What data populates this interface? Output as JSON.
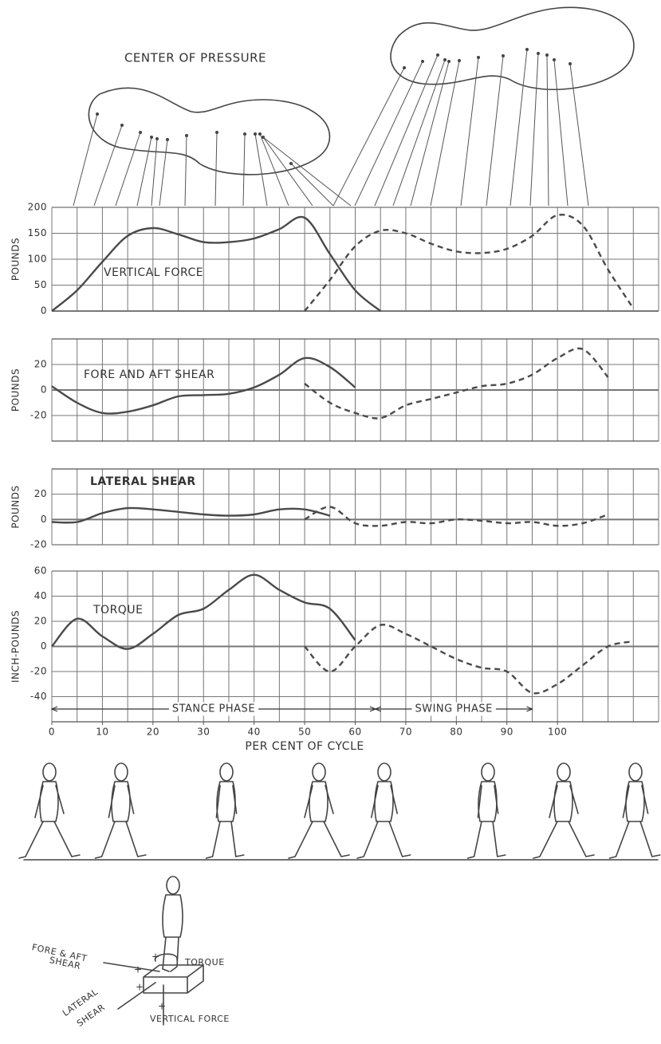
{
  "center_of_pressure": {
    "title": "CENTER OF PRESSURE"
  },
  "chart_data": [
    {
      "type": "line",
      "title": "VERTICAL FORCE",
      "ylabel": "POUNDS",
      "x": [
        0,
        5,
        10,
        15,
        20,
        25,
        30,
        35,
        40,
        45,
        50,
        55,
        60,
        65,
        70,
        75,
        80,
        85,
        90,
        95,
        100,
        105,
        110,
        115,
        120
      ],
      "xlim": [
        0,
        120
      ],
      "ylim": [
        0,
        200
      ],
      "yticks": [
        0,
        50,
        100,
        150,
        200
      ],
      "grid": true,
      "series": [
        {
          "color": "#4a4a4a",
          "line_style": "solid",
          "values": [
            0,
            40,
            95,
            145,
            160,
            148,
            133,
            133,
            140,
            158,
            180,
            110,
            40,
            0,
            null,
            null,
            null,
            null,
            null,
            null,
            null,
            null,
            null,
            null,
            null
          ]
        },
        {
          "color": "#4a4a4a",
          "line_style": "dashed",
          "values": [
            null,
            null,
            null,
            null,
            null,
            null,
            null,
            null,
            null,
            null,
            0,
            60,
            125,
            155,
            150,
            130,
            115,
            112,
            120,
            145,
            185,
            165,
            80,
            5,
            null
          ]
        }
      ]
    },
    {
      "type": "line",
      "title": "FORE AND AFT SHEAR",
      "ylabel": "POUNDS",
      "x": [
        0,
        5,
        10,
        15,
        20,
        25,
        30,
        35,
        40,
        45,
        50,
        55,
        60,
        65,
        70,
        75,
        80,
        85,
        90,
        95,
        100,
        105,
        110,
        115,
        120
      ],
      "xlim": [
        0,
        120
      ],
      "ylim": [
        -40,
        40
      ],
      "yticks": [
        -20,
        0,
        20
      ],
      "grid": true,
      "series": [
        {
          "color": "#4a4a4a",
          "line_style": "solid",
          "values": [
            3,
            -10,
            -18,
            -17,
            -12,
            -5,
            -4,
            -3,
            2,
            12,
            25,
            18,
            2,
            null,
            null,
            null,
            null,
            null,
            null,
            null,
            null,
            null,
            null,
            null,
            null
          ]
        },
        {
          "color": "#4a4a4a",
          "line_style": "dashed",
          "values": [
            null,
            null,
            null,
            null,
            null,
            null,
            null,
            null,
            null,
            null,
            5,
            -10,
            -18,
            -22,
            -12,
            -7,
            -2,
            3,
            5,
            12,
            25,
            32,
            10,
            null,
            null
          ]
        }
      ]
    },
    {
      "type": "line",
      "title": "LATERAL SHEAR",
      "ylabel": "POUNDS",
      "x": [
        0,
        5,
        10,
        15,
        20,
        25,
        30,
        35,
        40,
        45,
        50,
        55,
        60,
        65,
        70,
        75,
        80,
        85,
        90,
        95,
        100,
        105,
        110,
        115,
        120
      ],
      "xlim": [
        0,
        120
      ],
      "ylim": [
        -20,
        40
      ],
      "yticks": [
        -20,
        0,
        20
      ],
      "grid": true,
      "series": [
        {
          "color": "#4a4a4a",
          "line_style": "solid",
          "values": [
            -2,
            -2,
            5,
            9,
            8,
            6,
            4,
            3,
            4,
            8,
            8,
            3,
            null,
            null,
            null,
            null,
            null,
            null,
            null,
            null,
            null,
            null,
            null,
            null,
            null
          ]
        },
        {
          "color": "#4a4a4a",
          "line_style": "dashed",
          "values": [
            null,
            null,
            null,
            null,
            null,
            null,
            null,
            null,
            null,
            null,
            0,
            10,
            -3,
            -5,
            -2,
            -3,
            0,
            -1,
            -3,
            -2,
            -5,
            -3,
            4,
            null,
            null
          ]
        }
      ]
    },
    {
      "type": "line",
      "title": "TORQUE",
      "ylabel": "INCH-POUNDS",
      "xlabel": "PER CENT OF CYCLE",
      "x": [
        0,
        5,
        10,
        15,
        20,
        25,
        30,
        35,
        40,
        45,
        50,
        55,
        60,
        65,
        70,
        75,
        80,
        85,
        90,
        95,
        100,
        105,
        110,
        115,
        120
      ],
      "xlim": [
        0,
        120
      ],
      "ylim": [
        -60,
        60
      ],
      "yticks": [
        -40,
        -20,
        0,
        20,
        40,
        60
      ],
      "xticks": [
        0,
        10,
        20,
        30,
        40,
        50,
        60,
        70,
        80,
        90,
        100
      ],
      "grid": true,
      "phases": [
        {
          "label": "STANCE PHASE",
          "start": 0,
          "end": 64
        },
        {
          "label": "SWING PHASE",
          "start": 64,
          "end": 95
        }
      ],
      "series": [
        {
          "color": "#4a4a4a",
          "line_style": "solid",
          "values": [
            0,
            22,
            8,
            -2,
            10,
            25,
            30,
            45,
            57,
            45,
            35,
            30,
            5,
            null,
            null,
            null,
            null,
            null,
            null,
            null,
            null,
            null,
            null,
            null,
            null
          ]
        },
        {
          "color": "#4a4a4a",
          "line_style": "dashed",
          "values": [
            null,
            null,
            null,
            null,
            null,
            null,
            null,
            null,
            null,
            null,
            0,
            -20,
            0,
            17,
            10,
            0,
            -10,
            -17,
            -20,
            -37,
            -30,
            -15,
            0,
            4,
            null
          ]
        }
      ]
    }
  ],
  "diagram": {
    "labels": [
      "FORE & AFT",
      "SHEAR",
      "TORQUE",
      "LATERAL",
      "SHEAR",
      "VERTICAL FORCE"
    ]
  }
}
